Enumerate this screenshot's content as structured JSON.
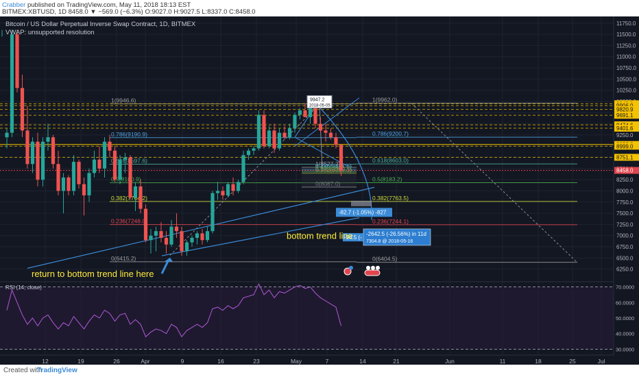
{
  "header": {
    "author": "Crabber",
    "published": "published on TradingView.com, May 11, 2018 18:13 EST",
    "quote_line": "BITMEX:XBTUSD, 1D 8458.0 ▼ −569.0 (−6.3%) O:9027.0 H:9027.5 L:8337.0 C:8458.0"
  },
  "footer": {
    "created_with": "Created with",
    "brand": "TradingView"
  },
  "chart_data": {
    "type": "candlestick",
    "title": "Bitcoin / US Dollar Perpetual Inverse Swap Contract, 1D, BITMEX",
    "subtitle": "VWAP: unsupported resolution",
    "ylim": [
      6000,
      11900
    ],
    "y_ticks": [
      11750,
      11500,
      11250,
      11000,
      10750,
      10500,
      10250,
      10000,
      9750,
      9500,
      9250,
      9000,
      8750,
      8500,
      8250,
      8000,
      7750,
      7500,
      7250,
      7000,
      6750,
      6500,
      6250
    ],
    "price_labels": [
      {
        "value": 9949.0,
        "text": "9949.0",
        "color": "#f5c200"
      },
      {
        "value": 9906.0,
        "text": "9906.0",
        "color": "#f5c200"
      },
      {
        "value": 9820.9,
        "text": "9820.9",
        "color": "#f5c200"
      },
      {
        "value": 9691.1,
        "text": "9691.1",
        "color": "#f5c200"
      },
      {
        "value": 9476.5,
        "text": "9476.5",
        "color": "#f5c200"
      },
      {
        "value": 9474.6,
        "text": "9474.6",
        "color": "#f5c200"
      },
      {
        "value": 9401.6,
        "text": "9401.6",
        "color": "#f5c200"
      },
      {
        "value": 9038.2,
        "text": "9038.2",
        "color": "#f5c200"
      },
      {
        "value": 8999.0,
        "text": "8999.0",
        "color": "#f5c200"
      },
      {
        "value": 8751.1,
        "text": "8751.1",
        "color": "#f5c200"
      },
      {
        "value": 8458.0,
        "text": "8458.0",
        "color": "#e0454e"
      }
    ],
    "x_ticks": [
      "12",
      "19",
      "26",
      "Apr",
      "9",
      "16",
      "23",
      "May",
      "7",
      "14",
      "21",
      "Jun",
      "11",
      "18",
      "25",
      "Jul"
    ],
    "candles": [
      [
        9200,
        9400,
        8950,
        9300
      ],
      [
        9300,
        11600,
        9200,
        11500
      ],
      [
        11500,
        11600,
        10200,
        10300
      ],
      [
        10300,
        10600,
        9200,
        9350
      ],
      [
        9350,
        9900,
        8500,
        8600
      ],
      [
        8600,
        9200,
        8400,
        9100
      ],
      [
        9100,
        9300,
        8100,
        8250
      ],
      [
        8250,
        9200,
        8100,
        9100
      ],
      [
        9100,
        9500,
        8900,
        9200
      ],
      [
        9200,
        9250,
        8500,
        8600
      ],
      [
        8600,
        8900,
        7900,
        8000
      ],
      [
        8000,
        8400,
        7500,
        8300
      ],
      [
        8300,
        8350,
        7900,
        8000
      ],
      [
        8000,
        8800,
        7900,
        8650
      ],
      [
        8650,
        8700,
        8050,
        8150
      ],
      [
        8150,
        8300,
        7450,
        7900
      ],
      [
        7900,
        8500,
        7750,
        8400
      ],
      [
        8400,
        8900,
        8300,
        8700
      ],
      [
        8700,
        9000,
        8400,
        8500
      ],
      [
        8500,
        9200,
        8300,
        9100
      ],
      [
        9100,
        9250,
        8750,
        8900
      ],
      [
        8900,
        9000,
        8200,
        8250
      ],
      [
        8250,
        8800,
        8150,
        8700
      ],
      [
        8700,
        8850,
        8400,
        8750
      ],
      [
        8750,
        8800,
        7800,
        7850
      ],
      [
        7850,
        8200,
        7550,
        8100
      ],
      [
        8100,
        8250,
        7500,
        7600
      ],
      [
        7600,
        7700,
        6850,
        6900
      ],
      [
        6900,
        7150,
        6600,
        7000
      ],
      [
        7000,
        7200,
        6650,
        7100
      ],
      [
        7100,
        7300,
        6850,
        6950
      ],
      [
        6950,
        7100,
        6600,
        6800
      ],
      [
        6800,
        7350,
        6750,
        7200
      ],
      [
        7200,
        7500,
        6950,
        7100
      ],
      [
        7100,
        7200,
        6550,
        6650
      ],
      [
        6650,
        6900,
        6550,
        6850
      ],
      [
        6850,
        7000,
        6750,
        6950
      ],
      [
        6950,
        7100,
        6800,
        7050
      ],
      [
        7050,
        7150,
        6800,
        6900
      ],
      [
        6900,
        7200,
        6850,
        7100
      ],
      [
        7100,
        8000,
        7050,
        7950
      ],
      [
        7950,
        8200,
        7800,
        8000
      ],
      [
        8000,
        8100,
        7800,
        7900
      ],
      [
        7900,
        8200,
        7850,
        8150
      ],
      [
        8150,
        8300,
        7900,
        8000
      ],
      [
        8000,
        8250,
        7950,
        8200
      ],
      [
        8200,
        8900,
        8150,
        8800
      ],
      [
        8800,
        8950,
        8700,
        8900
      ],
      [
        8900,
        9000,
        8800,
        8950
      ],
      [
        8950,
        9800,
        8900,
        9700
      ],
      [
        9700,
        9800,
        8950,
        9000
      ],
      [
        9000,
        9450,
        8950,
        9350
      ],
      [
        9350,
        9500,
        8850,
        8950
      ],
      [
        8950,
        9400,
        8900,
        9300
      ],
      [
        9300,
        9450,
        9150,
        9200
      ],
      [
        9200,
        9500,
        9150,
        9400
      ],
      [
        9400,
        9750,
        9300,
        9700
      ],
      [
        9700,
        9850,
        9600,
        9800
      ],
      [
        9800,
        9950,
        9700,
        9650
      ],
      [
        9650,
        9950,
        9500,
        9850
      ],
      [
        9850,
        9960,
        9400,
        9500
      ],
      [
        9500,
        9650,
        9300,
        9350
      ],
      [
        9350,
        9500,
        9100,
        9300
      ],
      [
        9300,
        9400,
        9150,
        9200
      ],
      [
        9200,
        9300,
        8950,
        9027
      ],
      [
        9027,
        9027.5,
        8337,
        8458
      ]
    ],
    "fib_left": [
      {
        "level": "1",
        "value": 9946.6,
        "color": "#9e9e9e"
      },
      {
        "level": "0.786",
        "value": 9190.9,
        "color": "#4fa3e0"
      },
      {
        "level": "0.618",
        "value": 8597.6,
        "color": "#4caf9a"
      },
      {
        "level": "0.5",
        "value": 8180.9,
        "color": "#4caf50"
      },
      {
        "level": "0.382",
        "value": 7764.2,
        "color": "#cddc39"
      },
      {
        "level": "0.236",
        "value": 7248.0,
        "color": "#e0454e"
      },
      {
        "level": "0",
        "value": 6415.2,
        "color": "#9e9e9e"
      }
    ],
    "fib_right": [
      {
        "level": "1",
        "value": 9962.0,
        "color": "#9e9e9e"
      },
      {
        "level": "0.786",
        "value": 9200.7,
        "color": "#4fa3e0"
      },
      {
        "level": "0.618",
        "value": 8603.0,
        "color": "#4caf9a"
      },
      {
        "level": "0.5",
        "value": 8183.2,
        "color": "#4caf50"
      },
      {
        "level": "0.382",
        "value": 7763.5,
        "color": "#cddc39"
      },
      {
        "level": "0.236",
        "value": 7244.1,
        "color": "#e0454e"
      },
      {
        "level": "0",
        "value": 6404.5,
        "color": "#9e9e9e"
      }
    ],
    "fib_small": [
      {
        "level": "1",
        "value": 8527.2,
        "color": "#9e9e9e"
      },
      {
        "level": "0.786",
        "value": 8481.6,
        "color": "#4fa3e0"
      },
      {
        "level": "0.618",
        "value": 8446.2,
        "color": "#4caf9a"
      },
      {
        "level": "0.5",
        "value": 8420.4,
        "color": "#4caf50"
      },
      {
        "level": "0.382",
        "value": 8395.3,
        "color": "#cddc39"
      },
      {
        "level": "0",
        "value": 8087.0,
        "color": "#9e9e9e"
      }
    ],
    "annotations": {
      "peak_value": "9947.2",
      "peak_date": "2018-05-05",
      "measure1": "-82.7 (-1.05%) -827",
      "measure2_line1": "-2642.5 (-26.56%) in 11d",
      "measure2_line2": "7304.8 @ 2018-05-16",
      "small_label": "-94.5 (-",
      "text_bottom_trend": "bottom trend line",
      "text_return": "return to bottom trend line here"
    },
    "rsi": {
      "label": "RSI (14, close)",
      "ylim": [
        28,
        72
      ],
      "ticks": [
        70,
        60,
        50,
        40,
        30
      ],
      "tick_labels": [
        "70.0000",
        "60.0000",
        "50.0000",
        "40.0000",
        "30.0000"
      ],
      "values": [
        55,
        68,
        60,
        52,
        46,
        50,
        45,
        50,
        52,
        47,
        43,
        47,
        45,
        51,
        47,
        43,
        48,
        52,
        50,
        55,
        53,
        48,
        52,
        53,
        46,
        49,
        46,
        38,
        41,
        43,
        42,
        40,
        46,
        44,
        38,
        42,
        44,
        46,
        44,
        47,
        56,
        57,
        55,
        58,
        56,
        58,
        63,
        64,
        65,
        72,
        65,
        68,
        63,
        67,
        66,
        68,
        70,
        71,
        69,
        70,
        66,
        63,
        61,
        59,
        57,
        45
      ]
    }
  }
}
